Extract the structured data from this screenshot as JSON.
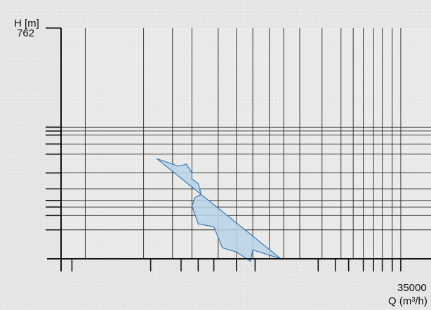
{
  "chart_data": {
    "type": "area",
    "title": "",
    "ylabel": "H [m]",
    "xlabel": "Q (m³/h)",
    "y_top_label": "762",
    "x_right_label": "35000",
    "fill_color": "#b9d3e6",
    "stroke_color": "#3a78b8",
    "grid": "log-log",
    "x_gridlines": [
      150,
      400,
      650,
      900,
      1400,
      1900,
      2500,
      3300,
      4200,
      5500,
      8000,
      11000,
      13500,
      16000,
      19000,
      22000,
      26000,
      30000
    ],
    "y_gridlines": [
      45,
      55,
      62,
      68,
      80,
      100,
      130,
      150,
      170,
      180,
      190
    ],
    "x_ticks": [
      120,
      450,
      750,
      1000,
      1300,
      1900,
      2600,
      7500,
      10000,
      12500,
      16000,
      19000,
      22000,
      26000,
      30000
    ],
    "y_ticks": [
      45,
      55,
      62,
      68,
      80,
      100,
      130,
      150,
      170,
      180,
      190
    ],
    "xlim": [
      100,
      35000
    ],
    "ylim": [
      30,
      762
    ],
    "envelope": [
      {
        "x": 500,
        "y": 122
      },
      {
        "x": 720,
        "y": 110
      },
      {
        "x": 820,
        "y": 113
      },
      {
        "x": 900,
        "y": 100
      },
      {
        "x": 900,
        "y": 92
      },
      {
        "x": 1000,
        "y": 86
      },
      {
        "x": 1050,
        "y": 74
      },
      {
        "x": 950,
        "y": 71
      },
      {
        "x": 900,
        "y": 63
      },
      {
        "x": 1000,
        "y": 49
      },
      {
        "x": 1300,
        "y": 47
      },
      {
        "x": 1500,
        "y": 35
      },
      {
        "x": 1900,
        "y": 33
      },
      {
        "x": 2400,
        "y": 29
      },
      {
        "x": 2500,
        "y": 34
      }
    ]
  }
}
